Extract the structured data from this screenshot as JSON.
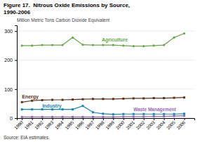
{
  "chart_data": {
    "type": "line",
    "title": "Figure 17.  Nitrous Oxide Emissions by Source,",
    "subtitle": "1990-2006",
    "y_label": "Million Metric Tons Carbon Dioxide Equivalent",
    "source": "Source: EIA estimates.",
    "x": [
      1990,
      1991,
      1992,
      1993,
      1994,
      1995,
      1996,
      1997,
      1998,
      1999,
      2000,
      2001,
      2002,
      2003,
      2004,
      2005,
      2006
    ],
    "series": [
      {
        "name": "Agriculture",
        "color": "#66aa44",
        "marker": "circle",
        "values": [
          250,
          250,
          252,
          252,
          252,
          278,
          253,
          252,
          252,
          252,
          250,
          248,
          248,
          250,
          252,
          278,
          292
        ]
      },
      {
        "name": "Energy",
        "color": "#5c3317",
        "marker": "square",
        "values": [
          55,
          60,
          62,
          63,
          63,
          64,
          65,
          66,
          66,
          66,
          67,
          68,
          68,
          69,
          69,
          70,
          71
        ]
      },
      {
        "name": "Industry",
        "color": "#1188bb",
        "marker": "square",
        "values": [
          30,
          30,
          30,
          30,
          30,
          30,
          42,
          20,
          15,
          13,
          14,
          14,
          14,
          14,
          14,
          14,
          15
        ]
      },
      {
        "name": "Waste Management",
        "color": "#9966bb",
        "marker": "square",
        "values": [
          4,
          4,
          4,
          4,
          4,
          4,
          4,
          4,
          4,
          4,
          5,
          5,
          5,
          6,
          6,
          7,
          8
        ]
      }
    ],
    "xlim": [
      1989.5,
      2007.0
    ],
    "xticks": [
      1990,
      1991,
      1992,
      1993,
      1994,
      1995,
      1996,
      1997,
      1998,
      1999,
      2000,
      2001,
      2002,
      2003,
      2004,
      2005,
      2006
    ],
    "ylim": [
      0,
      320
    ],
    "yticks": [
      0,
      100,
      200,
      300
    ],
    "grid": true
  }
}
